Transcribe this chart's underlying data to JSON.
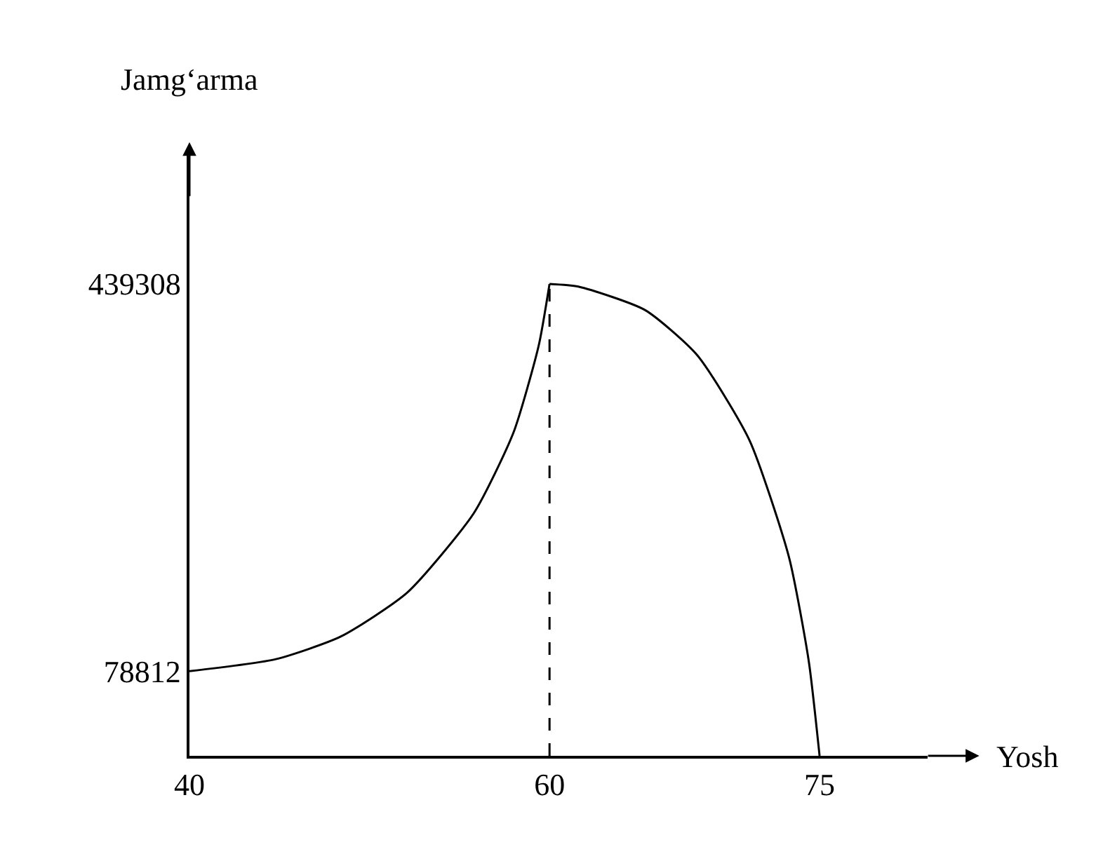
{
  "chart_data": {
    "type": "line",
    "xlabel": "Yosh",
    "ylabel": "Jamg‘arma",
    "xlim": [
      40,
      81
    ],
    "ylim": [
      0,
      560000
    ],
    "xticks": [
      40,
      60,
      75
    ],
    "yticks": [
      78812,
      439308
    ],
    "marker": "none",
    "series": [
      {
        "color": "#000000",
        "line_style": "solid",
        "x": [
          40,
          44.8,
          48.4,
          52.1,
          55.8,
          58,
          59.4,
          60
        ],
        "values": [
          78812,
          90000,
          111000,
          152000,
          226000,
          301000,
          382000,
          439308
        ]
      },
      {
        "color": "#000000",
        "line_style": "solid",
        "x": [
          60,
          61.6,
          65.3,
          68.2,
          71.1,
          73.3,
          74.4,
          75
        ],
        "values": [
          439308,
          436800,
          415000,
          373000,
          294000,
          185000,
          88000,
          0
        ]
      }
    ],
    "ref_lines": [
      {
        "axis": "x",
        "value": 60,
        "line_style": "dashed",
        "color": "#000000"
      }
    ]
  }
}
